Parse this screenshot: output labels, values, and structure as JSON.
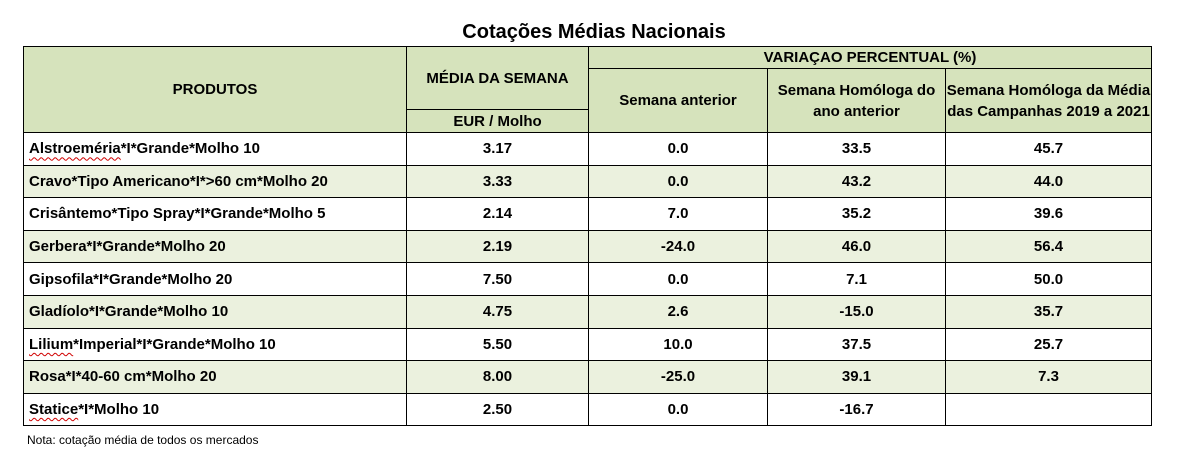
{
  "title": "Cotações Médias Nacionais",
  "headers": {
    "products": "PRODUTOS",
    "week_avg": "MÉDIA DA SEMANA",
    "unit": "EUR / Molho",
    "variation": "VARIAÇAO PERCENTUAL (%)",
    "prev_week": "Semana anterior",
    "same_week_prev_year": "Semana Homóloga do ano anterior",
    "same_week_campaigns": "Semana Homóloga da Média das Campanhas 2019 a 2021"
  },
  "rows": [
    {
      "name": "Alstroeméria",
      "rest": "*I*Grande*Molho 10",
      "avg": "3.17",
      "prev": "0.0",
      "yoy": "33.5",
      "camp": "45.7"
    },
    {
      "name": "Cravo*Tipo Americano*I*>60 cm*Molho 20",
      "rest": "",
      "avg": "3.33",
      "prev": "0.0",
      "yoy": "43.2",
      "camp": "44.0"
    },
    {
      "name": "Crisântemo*Tipo Spray*I*Grande*Molho 5",
      "rest": "",
      "avg": "2.14",
      "prev": "7.0",
      "yoy": "35.2",
      "camp": "39.6"
    },
    {
      "name": "Gerbera*I*Grande*Molho 20",
      "rest": "",
      "avg": "2.19",
      "prev": "-24.0",
      "yoy": "46.0",
      "camp": "56.4"
    },
    {
      "name": "Gipsofila*I*Grande*Molho 20",
      "rest": "",
      "avg": "7.50",
      "prev": "0.0",
      "yoy": "7.1",
      "camp": "50.0"
    },
    {
      "name": "Gladíolo*I*Grande*Molho 10",
      "rest": "",
      "avg": "4.75",
      "prev": "2.6",
      "yoy": "-15.0",
      "camp": "35.7"
    },
    {
      "name": "Lilium",
      "rest": "*Imperial*I*Grande*Molho 10",
      "avg": "5.50",
      "prev": "10.0",
      "yoy": "37.5",
      "camp": "25.7"
    },
    {
      "name": "Rosa*I*40-60 cm*Molho 20",
      "rest": "",
      "avg": "8.00",
      "prev": "-25.0",
      "yoy": "39.1",
      "camp": "7.3"
    },
    {
      "name": "Statice",
      "rest": "*I*Molho 10",
      "avg": "2.50",
      "prev": "0.0",
      "yoy": "-16.7",
      "camp": ""
    }
  ],
  "note": "Nota: cotação média de todos os mercados"
}
